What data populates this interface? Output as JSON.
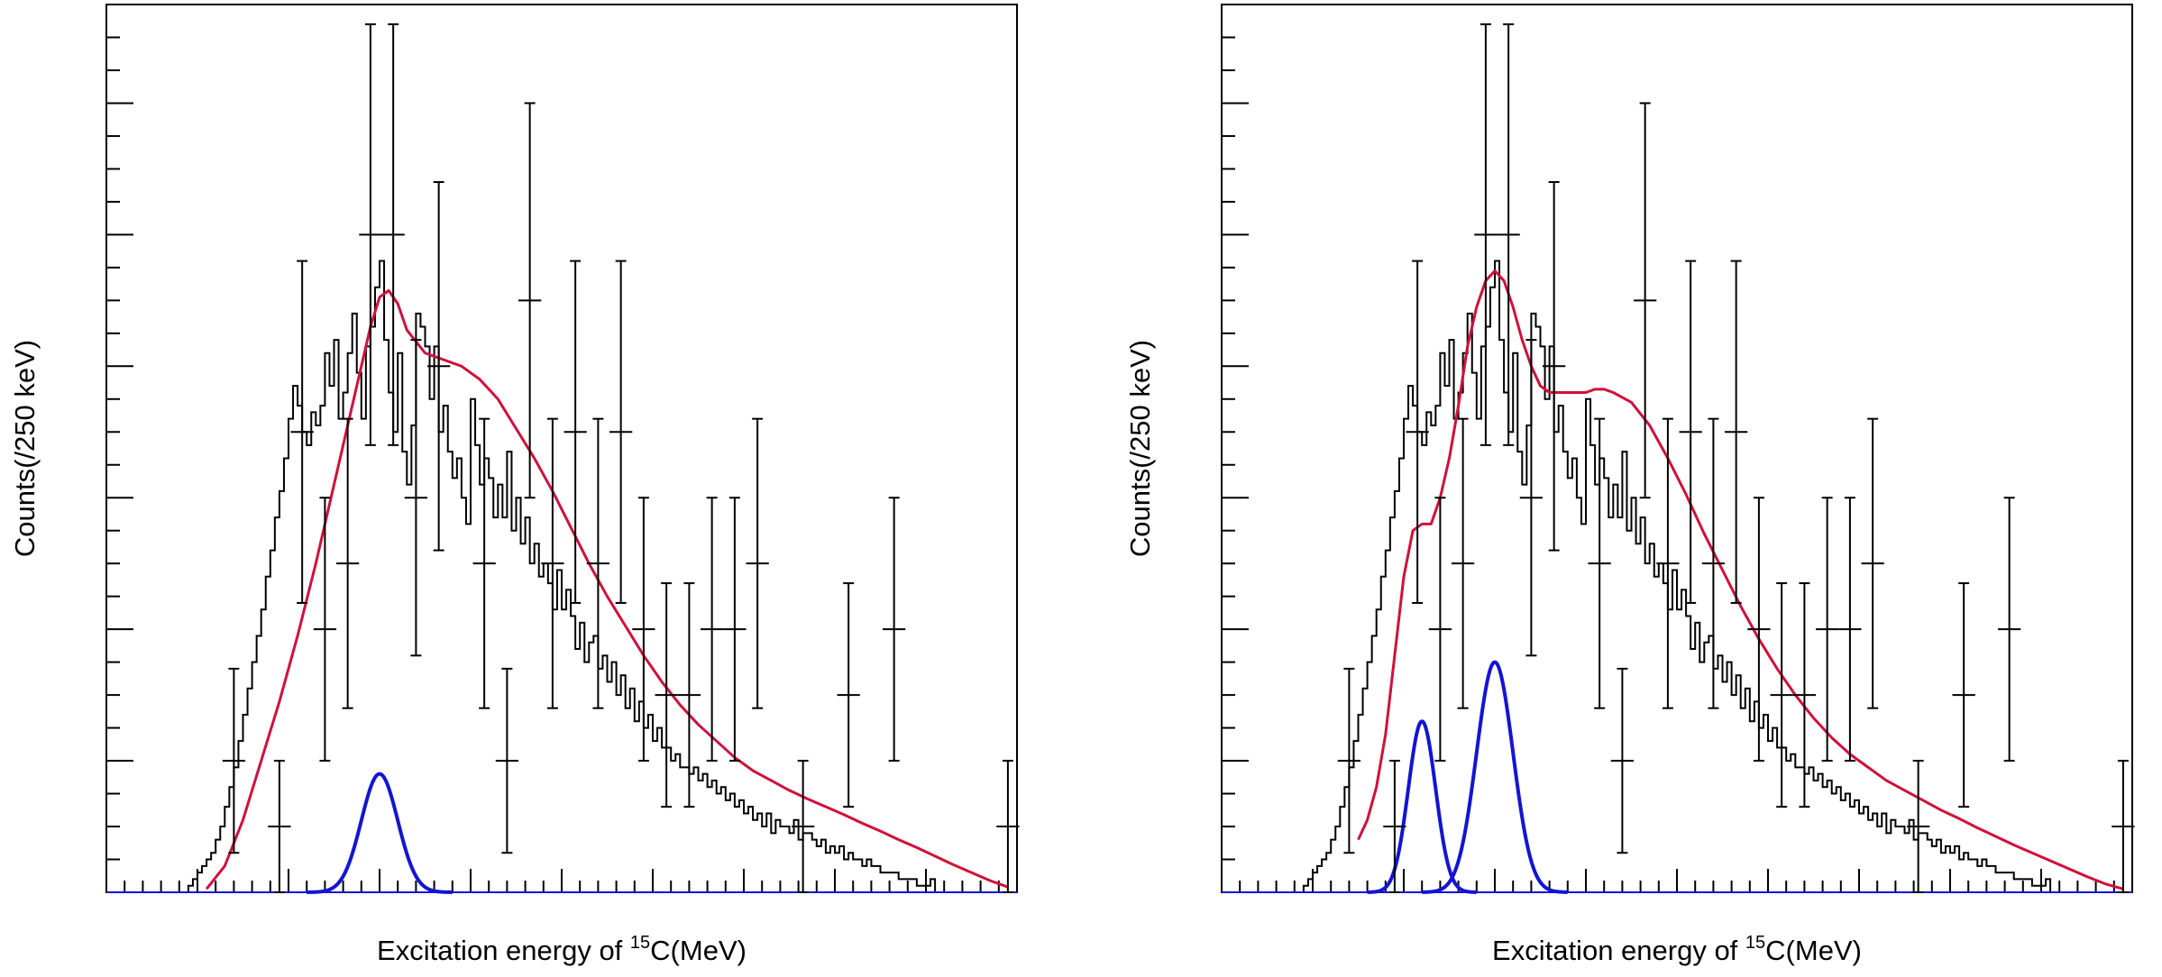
{
  "colors": {
    "histogram": "#000000",
    "fit_total": "#d0103a",
    "components": "#1414d4",
    "error_bars": "#000000",
    "background": "#ffffff"
  },
  "chart_data": [
    {
      "type": "histogram",
      "panel": "left",
      "xlabel": {
        "prefix": "Excitation energy of ",
        "sup": "15",
        "suffix": "C(MeV)"
      },
      "ylabel": "Counts(/250 keV)",
      "xlim": [
        12,
        22
      ],
      "ylim": [
        0,
        13.5
      ],
      "xticks": [
        "12",
        "13",
        "14",
        "15",
        "16",
        "17",
        "18",
        "19",
        "20",
        "21",
        "22"
      ],
      "yticks": [
        "0",
        "2",
        "4",
        "6",
        "8",
        "10",
        "12"
      ],
      "grid": false,
      "histogram": {
        "bin_width": 0.05,
        "x_start": 12.9,
        "values": [
          0.1,
          0.2,
          0.3,
          0.4,
          0.5,
          0.6,
          0.8,
          1.0,
          1.3,
          1.6,
          1.9,
          2.3,
          2.7,
          3.1,
          3.5,
          3.9,
          4.3,
          4.8,
          5.2,
          5.7,
          6.1,
          6.6,
          7.2,
          7.7,
          7.4,
          7.0,
          6.8,
          7.3,
          7.1,
          7.4,
          8.2,
          7.7,
          8.4,
          7.2,
          7.6,
          8.2,
          8.8,
          7.9,
          7.2,
          8.3,
          8.6,
          9.2,
          9.6,
          8.4,
          7.6,
          7.0,
          8.2,
          6.7,
          6.2,
          7.1,
          8.8,
          8.6,
          8.3,
          7.5,
          8.3,
          7.0,
          7.4,
          6.7,
          6.3,
          6.6,
          6.0,
          5.6,
          7.5,
          6.8,
          6.2,
          6.6,
          6.3,
          5.7,
          6.2,
          5.7,
          6.7,
          5.5,
          6.0,
          5.3,
          5.7,
          5.0,
          5.3,
          4.8,
          5.0,
          4.7,
          4.3,
          4.9,
          4.3,
          4.6,
          4.2,
          3.7,
          4.1,
          3.5,
          3.8,
          3.9,
          3.4,
          3.6,
          3.2,
          3.5,
          3.0,
          3.3,
          2.8,
          3.1,
          2.6,
          2.9,
          2.5,
          2.7,
          2.3,
          2.5,
          2.2,
          2.2,
          2.0,
          2.1,
          1.9,
          1.9,
          1.8,
          1.9,
          1.7,
          1.8,
          1.6,
          1.7,
          1.5,
          1.6,
          1.4,
          1.5,
          1.3,
          1.4,
          1.2,
          1.3,
          1.1,
          1.2,
          1.0,
          1.2,
          0.9,
          1.1,
          1.0,
          1.0,
          0.9,
          1.1,
          0.8,
          0.9,
          0.9,
          0.8,
          0.7,
          0.8,
          0.6,
          0.7,
          0.6,
          0.7,
          0.5,
          0.6,
          0.5,
          0.5,
          0.4,
          0.5,
          0.4,
          0.4,
          0.3,
          0.3,
          0.3,
          0.3,
          0.2,
          0.2,
          0.2,
          0.2,
          0.1,
          0.1,
          0.1,
          0.2
        ]
      },
      "fit_total": {
        "x": [
          13.1,
          13.3,
          13.5,
          13.7,
          13.9,
          14.1,
          14.3,
          14.5,
          14.7,
          14.9,
          15.0,
          15.1,
          15.2,
          15.3,
          15.5,
          15.7,
          15.9,
          16.1,
          16.3,
          16.5,
          16.7,
          16.9,
          17.1,
          17.3,
          17.5,
          17.7,
          17.9,
          18.1,
          18.3,
          18.5,
          18.7,
          18.9,
          19.1,
          19.3,
          19.5,
          19.7,
          19.9,
          20.1,
          20.3,
          20.5,
          20.7,
          20.9,
          21.1,
          21.3,
          21.5,
          21.7,
          21.9
        ],
        "y": [
          0.05,
          0.4,
          1.1,
          2.0,
          2.9,
          3.9,
          5.0,
          6.2,
          7.4,
          8.6,
          9.05,
          9.15,
          8.95,
          8.55,
          8.2,
          8.1,
          8.0,
          7.8,
          7.5,
          7.05,
          6.6,
          6.1,
          5.55,
          5.0,
          4.5,
          4.05,
          3.6,
          3.2,
          2.85,
          2.55,
          2.3,
          2.05,
          1.85,
          1.7,
          1.55,
          1.42,
          1.3,
          1.18,
          1.05,
          0.93,
          0.8,
          0.68,
          0.55,
          0.42,
          0.3,
          0.18,
          0.08
        ]
      },
      "components": [
        {
          "type": "gaussian",
          "mean": 15.0,
          "sigma": 0.2,
          "amplitude": 1.8
        }
      ],
      "error_points": [
        {
          "x": 13.4,
          "y": 2,
          "xerr": 0.125,
          "yerr": [
            1.4,
            1.4
          ]
        },
        {
          "x": 13.9,
          "y": 1,
          "xerr": 0.125,
          "yerr": [
            1.0,
            1.0
          ]
        },
        {
          "x": 14.15,
          "y": 7,
          "xerr": 0.125,
          "yerr": [
            2.6,
            2.6
          ]
        },
        {
          "x": 14.4,
          "y": 4,
          "xerr": 0.125,
          "yerr": [
            2.0,
            2.0
          ]
        },
        {
          "x": 14.65,
          "y": 5,
          "xerr": 0.125,
          "yerr": [
            2.2,
            2.2
          ]
        },
        {
          "x": 14.9,
          "y": 10,
          "xerr": 0.125,
          "yerr": [
            3.2,
            3.2
          ]
        },
        {
          "x": 15.15,
          "y": 10,
          "xerr": 0.125,
          "yerr": [
            3.2,
            3.2
          ]
        },
        {
          "x": 15.4,
          "y": 6,
          "xerr": 0.125,
          "yerr": [
            2.4,
            2.4
          ]
        },
        {
          "x": 15.65,
          "y": 8,
          "xerr": 0.125,
          "yerr": [
            2.8,
            2.8
          ]
        },
        {
          "x": 16.15,
          "y": 5,
          "xerr": 0.125,
          "yerr": [
            2.2,
            2.2
          ]
        },
        {
          "x": 16.4,
          "y": 2,
          "xerr": 0.125,
          "yerr": [
            1.4,
            1.4
          ]
        },
        {
          "x": 16.65,
          "y": 9,
          "xerr": 0.125,
          "yerr": [
            3.0,
            3.0
          ]
        },
        {
          "x": 16.9,
          "y": 5,
          "xerr": 0.125,
          "yerr": [
            2.2,
            2.2
          ]
        },
        {
          "x": 17.15,
          "y": 7,
          "xerr": 0.125,
          "yerr": [
            2.6,
            2.6
          ]
        },
        {
          "x": 17.4,
          "y": 5,
          "xerr": 0.125,
          "yerr": [
            2.2,
            2.2
          ]
        },
        {
          "x": 17.65,
          "y": 7,
          "xerr": 0.125,
          "yerr": [
            2.6,
            2.6
          ]
        },
        {
          "x": 17.9,
          "y": 4,
          "xerr": 0.125,
          "yerr": [
            2.0,
            2.0
          ]
        },
        {
          "x": 18.15,
          "y": 3,
          "xerr": 0.125,
          "yerr": [
            1.7,
            1.7
          ]
        },
        {
          "x": 18.4,
          "y": 3,
          "xerr": 0.125,
          "yerr": [
            1.7,
            1.7
          ]
        },
        {
          "x": 18.65,
          "y": 4,
          "xerr": 0.125,
          "yerr": [
            2.0,
            2.0
          ]
        },
        {
          "x": 18.9,
          "y": 4,
          "xerr": 0.125,
          "yerr": [
            2.0,
            2.0
          ]
        },
        {
          "x": 19.15,
          "y": 5,
          "xerr": 0.125,
          "yerr": [
            2.2,
            2.2
          ]
        },
        {
          "x": 19.65,
          "y": 1,
          "xerr": 0.125,
          "yerr": [
            1.0,
            1.0
          ]
        },
        {
          "x": 20.15,
          "y": 3,
          "xerr": 0.125,
          "yerr": [
            1.7,
            1.7
          ]
        },
        {
          "x": 20.65,
          "y": 4,
          "xerr": 0.125,
          "yerr": [
            2.0,
            2.0
          ]
        },
        {
          "x": 21.9,
          "y": 1,
          "xerr": 0.125,
          "yerr": [
            1.0,
            1.0
          ]
        }
      ]
    },
    {
      "type": "histogram",
      "panel": "right",
      "xlabel": {
        "prefix": "Excitation energy of ",
        "sup": "15",
        "suffix": "C(MeV)"
      },
      "ylabel": "Counts(/250 keV)",
      "xlim": [
        12,
        22
      ],
      "ylim": [
        0,
        13.5
      ],
      "xticks": [
        "12",
        "13",
        "14",
        "15",
        "16",
        "17",
        "18",
        "19",
        "20",
        "21",
        "22"
      ],
      "yticks": [
        "0",
        "2",
        "4",
        "6",
        "8",
        "10",
        "12"
      ],
      "grid": false,
      "histogram": {
        "bin_width": 0.05,
        "x_start": 12.9,
        "values": [
          0.1,
          0.2,
          0.3,
          0.4,
          0.5,
          0.6,
          0.8,
          1.0,
          1.3,
          1.6,
          1.9,
          2.3,
          2.7,
          3.1,
          3.5,
          3.9,
          4.3,
          4.8,
          5.2,
          5.7,
          6.1,
          6.6,
          7.2,
          7.7,
          7.4,
          7.0,
          6.8,
          7.3,
          7.1,
          7.4,
          8.2,
          7.7,
          8.4,
          7.2,
          7.6,
          8.2,
          8.8,
          7.9,
          7.2,
          8.3,
          8.6,
          9.2,
          9.6,
          8.4,
          7.6,
          7.0,
          8.2,
          6.7,
          6.2,
          7.1,
          8.8,
          8.6,
          8.3,
          7.5,
          8.3,
          7.0,
          7.4,
          6.7,
          6.3,
          6.6,
          6.0,
          5.6,
          7.5,
          6.8,
          6.2,
          6.6,
          6.3,
          5.7,
          6.2,
          5.7,
          6.7,
          5.5,
          6.0,
          5.3,
          5.7,
          5.0,
          5.3,
          4.8,
          5.0,
          4.7,
          4.3,
          4.9,
          4.3,
          4.6,
          4.2,
          3.7,
          4.1,
          3.5,
          3.8,
          3.9,
          3.4,
          3.6,
          3.2,
          3.5,
          3.0,
          3.3,
          2.8,
          3.1,
          2.6,
          2.9,
          2.5,
          2.7,
          2.3,
          2.5,
          2.2,
          2.2,
          2.0,
          2.1,
          1.9,
          1.9,
          1.8,
          1.9,
          1.7,
          1.8,
          1.6,
          1.7,
          1.5,
          1.6,
          1.4,
          1.5,
          1.3,
          1.4,
          1.2,
          1.3,
          1.1,
          1.2,
          1.0,
          1.2,
          0.9,
          1.1,
          1.0,
          1.0,
          0.9,
          1.1,
          0.8,
          0.9,
          0.9,
          0.8,
          0.7,
          0.8,
          0.6,
          0.7,
          0.6,
          0.7,
          0.5,
          0.6,
          0.5,
          0.5,
          0.4,
          0.5,
          0.4,
          0.4,
          0.3,
          0.3,
          0.3,
          0.3,
          0.2,
          0.2,
          0.2,
          0.2,
          0.1,
          0.1,
          0.1,
          0.2
        ]
      },
      "fit_total": {
        "x": [
          13.5,
          13.6,
          13.7,
          13.8,
          13.9,
          14.0,
          14.1,
          14.2,
          14.3,
          14.4,
          14.5,
          14.6,
          14.7,
          14.8,
          14.9,
          15.0,
          15.1,
          15.2,
          15.3,
          15.4,
          15.5,
          15.6,
          15.7,
          15.8,
          15.9,
          16.0,
          16.1,
          16.2,
          16.3,
          16.5,
          16.7,
          16.9,
          17.1,
          17.3,
          17.5,
          17.7,
          17.9,
          18.1,
          18.3,
          18.5,
          18.7,
          18.9,
          19.1,
          19.3,
          19.5,
          19.7,
          19.9,
          20.1,
          20.3,
          20.5,
          20.7,
          20.9,
          21.1,
          21.3,
          21.5,
          21.7,
          21.9
        ],
        "y": [
          0.8,
          1.1,
          1.6,
          2.4,
          3.6,
          4.8,
          5.5,
          5.6,
          5.6,
          6.0,
          6.6,
          7.4,
          8.3,
          8.9,
          9.3,
          9.45,
          9.3,
          8.9,
          8.4,
          8.0,
          7.7,
          7.6,
          7.6,
          7.6,
          7.6,
          7.6,
          7.65,
          7.65,
          7.6,
          7.45,
          7.1,
          6.6,
          6.05,
          5.45,
          4.9,
          4.35,
          3.85,
          3.4,
          3.0,
          2.65,
          2.35,
          2.1,
          1.9,
          1.7,
          1.55,
          1.4,
          1.25,
          1.12,
          0.98,
          0.85,
          0.72,
          0.6,
          0.48,
          0.36,
          0.24,
          0.13,
          0.05
        ]
      },
      "components": [
        {
          "type": "gaussian",
          "mean": 14.2,
          "sigma": 0.15,
          "amplitude": 2.6
        },
        {
          "type": "gaussian",
          "mean": 15.0,
          "sigma": 0.2,
          "amplitude": 3.5
        }
      ],
      "error_points": [
        {
          "x": 13.4,
          "y": 2,
          "xerr": 0.125,
          "yerr": [
            1.4,
            1.4
          ]
        },
        {
          "x": 13.9,
          "y": 1,
          "xerr": 0.125,
          "yerr": [
            1.0,
            1.0
          ]
        },
        {
          "x": 14.15,
          "y": 7,
          "xerr": 0.125,
          "yerr": [
            2.6,
            2.6
          ]
        },
        {
          "x": 14.4,
          "y": 4,
          "xerr": 0.125,
          "yerr": [
            2.0,
            2.0
          ]
        },
        {
          "x": 14.65,
          "y": 5,
          "xerr": 0.125,
          "yerr": [
            2.2,
            2.2
          ]
        },
        {
          "x": 14.9,
          "y": 10,
          "xerr": 0.125,
          "yerr": [
            3.2,
            3.2
          ]
        },
        {
          "x": 15.15,
          "y": 10,
          "xerr": 0.125,
          "yerr": [
            3.2,
            3.2
          ]
        },
        {
          "x": 15.4,
          "y": 6,
          "xerr": 0.125,
          "yerr": [
            2.4,
            2.4
          ]
        },
        {
          "x": 15.65,
          "y": 8,
          "xerr": 0.125,
          "yerr": [
            2.8,
            2.8
          ]
        },
        {
          "x": 16.15,
          "y": 5,
          "xerr": 0.125,
          "yerr": [
            2.2,
            2.2
          ]
        },
        {
          "x": 16.4,
          "y": 2,
          "xerr": 0.125,
          "yerr": [
            1.4,
            1.4
          ]
        },
        {
          "x": 16.65,
          "y": 9,
          "xerr": 0.125,
          "yerr": [
            3.0,
            3.0
          ]
        },
        {
          "x": 16.9,
          "y": 5,
          "xerr": 0.125,
          "yerr": [
            2.2,
            2.2
          ]
        },
        {
          "x": 17.15,
          "y": 7,
          "xerr": 0.125,
          "yerr": [
            2.6,
            2.6
          ]
        },
        {
          "x": 17.4,
          "y": 5,
          "xerr": 0.125,
          "yerr": [
            2.2,
            2.2
          ]
        },
        {
          "x": 17.65,
          "y": 7,
          "xerr": 0.125,
          "yerr": [
            2.6,
            2.6
          ]
        },
        {
          "x": 17.9,
          "y": 4,
          "xerr": 0.125,
          "yerr": [
            2.0,
            2.0
          ]
        },
        {
          "x": 18.15,
          "y": 3,
          "xerr": 0.125,
          "yerr": [
            1.7,
            1.7
          ]
        },
        {
          "x": 18.4,
          "y": 3,
          "xerr": 0.125,
          "yerr": [
            1.7,
            1.7
          ]
        },
        {
          "x": 18.65,
          "y": 4,
          "xerr": 0.125,
          "yerr": [
            2.0,
            2.0
          ]
        },
        {
          "x": 18.9,
          "y": 4,
          "xerr": 0.125,
          "yerr": [
            2.0,
            2.0
          ]
        },
        {
          "x": 19.15,
          "y": 5,
          "xerr": 0.125,
          "yerr": [
            2.2,
            2.2
          ]
        },
        {
          "x": 19.65,
          "y": 1,
          "xerr": 0.125,
          "yerr": [
            1.0,
            1.0
          ]
        },
        {
          "x": 20.15,
          "y": 3,
          "xerr": 0.125,
          "yerr": [
            1.7,
            1.7
          ]
        },
        {
          "x": 20.65,
          "y": 4,
          "xerr": 0.125,
          "yerr": [
            2.0,
            2.0
          ]
        },
        {
          "x": 21.9,
          "y": 1,
          "xerr": 0.125,
          "yerr": [
            1.0,
            1.0
          ]
        }
      ]
    }
  ]
}
